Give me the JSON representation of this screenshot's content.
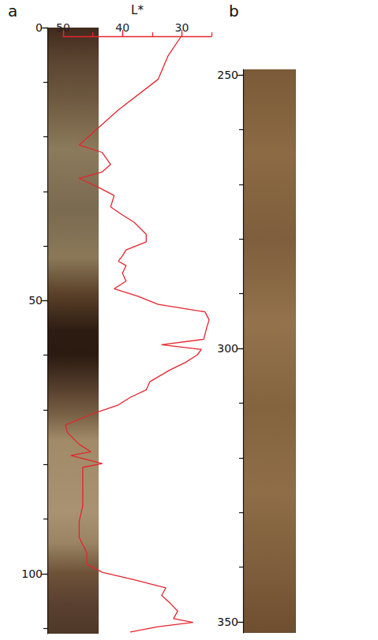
{
  "chart_data": [
    {
      "panel": "a",
      "type": "line",
      "xlabel": "L*",
      "color": "#e4252d",
      "xlim": [
        50,
        25
      ],
      "xticks": [
        50,
        40,
        30
      ],
      "ylim": [
        0,
        111
      ],
      "yticks": [
        0,
        50,
        100
      ],
      "x": [
        30.1,
        32.3,
        34.0,
        40.7,
        47.3,
        43.4,
        42.0,
        43.4,
        47.3,
        44.0,
        41.4,
        42.0,
        40.0,
        38.0,
        36.0,
        36.0,
        39.4,
        40.0,
        40.7,
        39.4,
        40.0,
        39.4,
        41.4,
        37.4,
        34.0,
        30.1,
        26.1,
        25.4,
        25.8,
        26.3,
        33.4,
        26.7,
        27.4,
        29.4,
        32.0,
        35.4,
        36.0,
        38.7,
        40.7,
        44.7,
        49.6,
        49.3,
        47.3,
        45.3,
        48.7,
        43.4,
        46.7,
        46.7,
        46.7,
        46.7,
        47.3,
        47.3,
        46.0,
        46.0,
        43.4,
        38.0,
        32.7,
        33.4,
        32.0,
        30.7,
        31.4,
        28.1,
        34.0,
        38.7
      ],
      "y": [
        0,
        3.6,
        8.0,
        13.7,
        20.2,
        21.6,
        23.8,
        25.2,
        26.4,
        28.1,
        29.6,
        31.7,
        33.2,
        34.6,
        36.8,
        38.2,
        39.7,
        40.8,
        41.8,
        42.6,
        44.0,
        45.5,
        46.9,
        48.3,
        49.8,
        50.5,
        51.2,
        52.7,
        54.1,
        56.3,
        57.3,
        58.2,
        59.2,
        60.6,
        62.0,
        64.2,
        65.7,
        67.1,
        68.5,
        70.0,
        72.2,
        73.6,
        75.8,
        77.2,
        77.9,
        79.4,
        80.1,
        81.5,
        84.4,
        87.3,
        90.2,
        93.1,
        96.0,
        98.1,
        99.6,
        101.0,
        102.5,
        103.9,
        105.3,
        106.8,
        108.2,
        108.9,
        109.7,
        110.7
      ]
    },
    {
      "panel": "b",
      "type": "core",
      "ylim": [
        249,
        352
      ],
      "yticks": [
        250,
        300,
        350
      ]
    }
  ]
}
